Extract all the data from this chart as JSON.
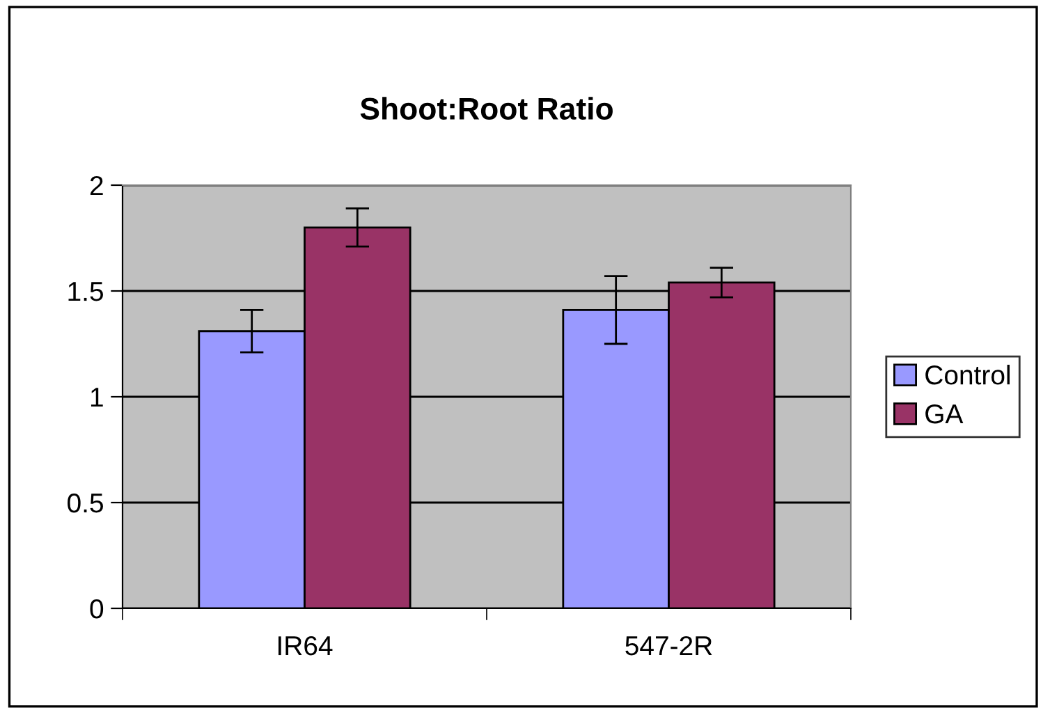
{
  "chart_data": {
    "type": "bar",
    "title": "Shoot:Root Ratio",
    "categories": [
      "IR64",
      "547-2R"
    ],
    "series": [
      {
        "name": "Control",
        "color": "#9999ff",
        "values": [
          1.31,
          1.41
        ],
        "errors": [
          0.1,
          0.16
        ]
      },
      {
        "name": "GA",
        "color": "#993366",
        "values": [
          1.8,
          1.54
        ],
        "errors": [
          0.09,
          0.07
        ]
      }
    ],
    "ylim": [
      0,
      2
    ],
    "yticks": [
      0,
      0.5,
      1,
      1.5,
      2
    ],
    "grid": "y",
    "legend": "right"
  }
}
